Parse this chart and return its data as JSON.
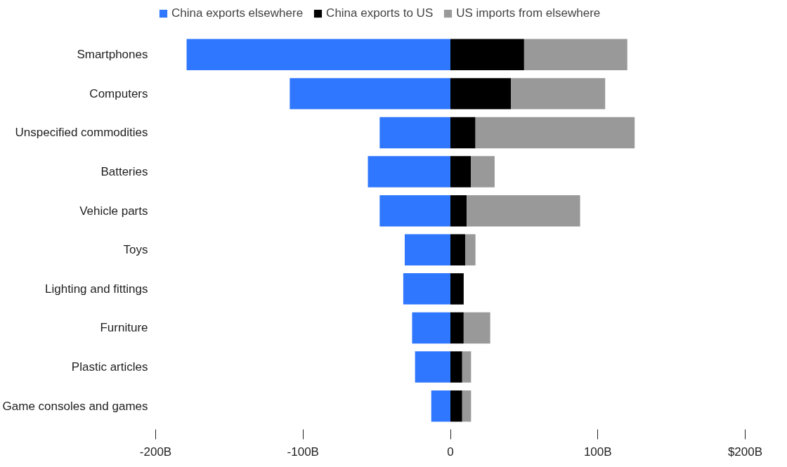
{
  "chart_data": {
    "type": "bar",
    "orientation": "horizontal",
    "stacked": true,
    "categories": [
      "Smartphones",
      "Computers",
      "Unspecified commodities",
      "Batteries",
      "Vehicle parts",
      "Toys",
      "Lighting and fittings",
      "Furniture",
      "Plastic articles",
      "Game consoles and games"
    ],
    "series": [
      {
        "name": "China exports elsewhere",
        "color": "#3077ff",
        "values": [
          -179,
          -109,
          -48,
          -56,
          -48,
          -31,
          -32,
          -26,
          -24,
          -13
        ]
      },
      {
        "name": "China exports to US",
        "color": "#000000",
        "values": [
          50,
          41,
          17,
          14,
          11,
          10,
          9,
          9,
          8,
          8
        ]
      },
      {
        "name": "US imports from elsewhere",
        "color": "#999999",
        "values": [
          70,
          64,
          108,
          16,
          77,
          7,
          0,
          18,
          6,
          6
        ]
      }
    ],
    "xlim": [
      -200,
      200
    ],
    "xticks": [
      {
        "value": -200,
        "label": "-200B"
      },
      {
        "value": -100,
        "label": "-100B"
      },
      0,
      {
        "value": 100,
        "label": "100B"
      },
      {
        "value": 200,
        "label": "$200B"
      }
    ],
    "grid": false,
    "legend": "top left"
  }
}
